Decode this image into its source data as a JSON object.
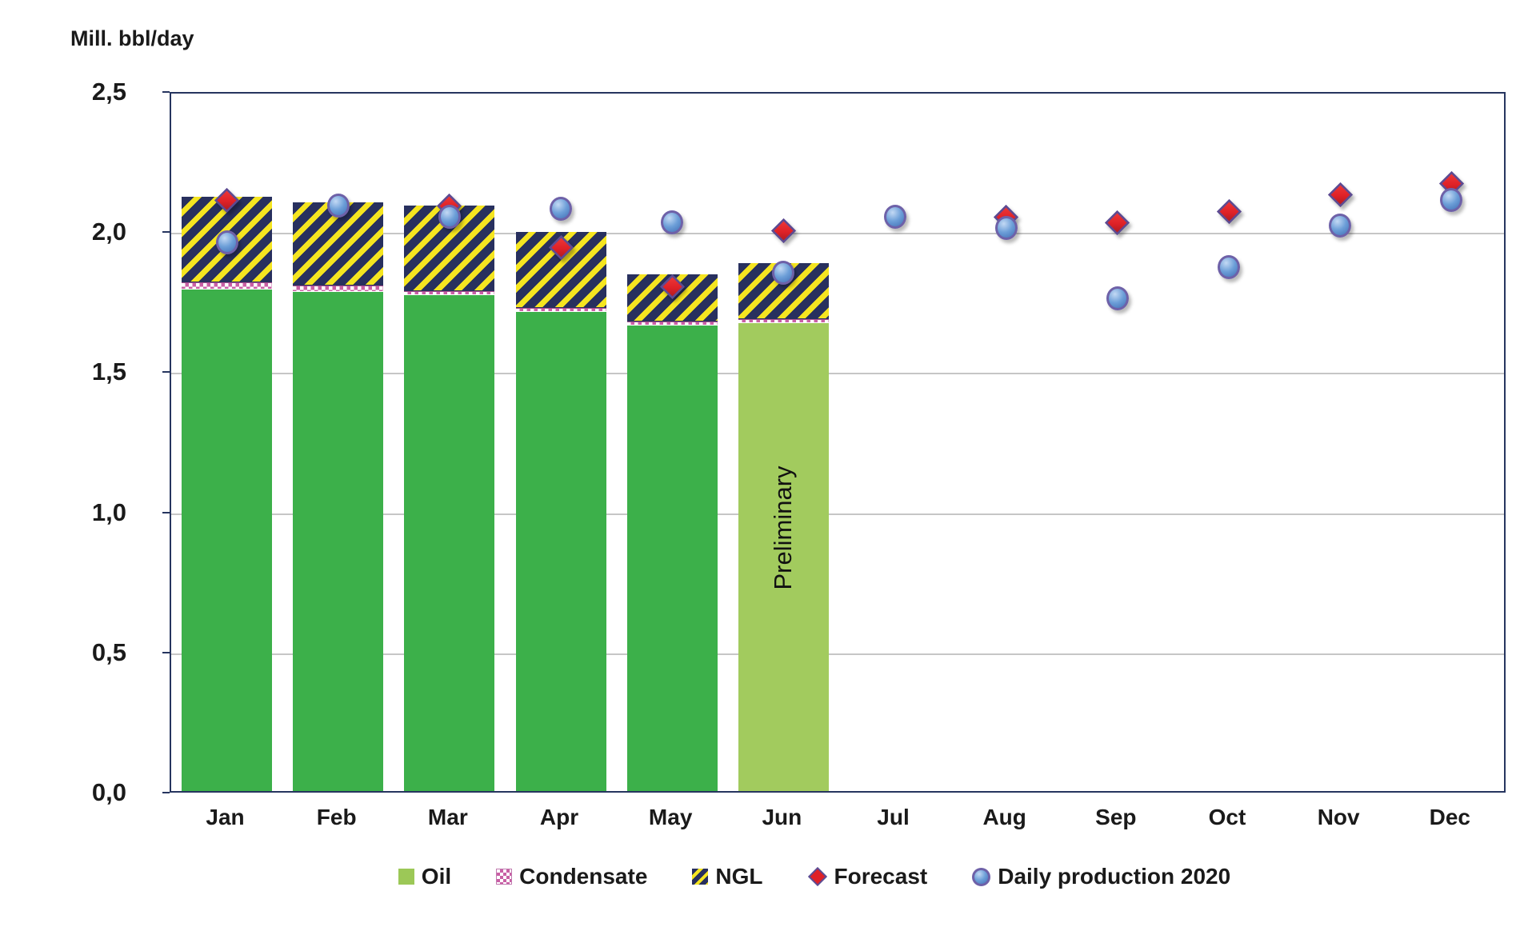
{
  "title": "Mill. bbl/day",
  "chart_data": {
    "type": "bar",
    "subtype": "stacked-bars-with-scatter-overlay",
    "title": "Mill. bbl/day",
    "xlabel": "",
    "ylabel": "Mill. bbl/day",
    "ylim": [
      0,
      2.5
    ],
    "grid": true,
    "legend_position": "bottom",
    "categories": [
      "Jan",
      "Feb",
      "Mar",
      "Apr",
      "May",
      "Jun",
      "Jul",
      "Aug",
      "Sep",
      "Oct",
      "Nov",
      "Dec"
    ],
    "y_ticks": [
      {
        "label": "2,5",
        "value": 2.5
      },
      {
        "label": "2,0",
        "value": 2.0
      },
      {
        "label": "1,5",
        "value": 1.5
      },
      {
        "label": "1,0",
        "value": 1.0
      },
      {
        "label": "0,5",
        "value": 0.5
      },
      {
        "label": "0,0",
        "value": 0.0
      }
    ],
    "series": [
      {
        "name": "Oil",
        "type": "stacked-bar",
        "values": [
          1.79,
          1.78,
          1.77,
          1.71,
          1.66,
          1.67,
          null,
          null,
          null,
          null,
          null,
          null
        ]
      },
      {
        "name": "Condensate",
        "type": "stacked-bar",
        "values": [
          0.025,
          0.025,
          0.015,
          0.015,
          0.015,
          0.015,
          null,
          null,
          null,
          null,
          null,
          null
        ]
      },
      {
        "name": "NGL",
        "type": "stacked-bar",
        "values": [
          0.305,
          0.295,
          0.305,
          0.27,
          0.17,
          0.2,
          null,
          null,
          null,
          null,
          null,
          null
        ]
      },
      {
        "name": "Forecast",
        "type": "scatter-diamond",
        "values": [
          2.12,
          null,
          2.1,
          1.95,
          1.81,
          2.01,
          null,
          2.06,
          2.04,
          2.08,
          2.14,
          2.18
        ]
      },
      {
        "name": "Daily production 2020",
        "type": "scatter-circle",
        "values": [
          1.97,
          2.1,
          2.06,
          2.09,
          2.04,
          1.86,
          2.06,
          2.02,
          1.77,
          1.88,
          2.03,
          2.12
        ]
      }
    ],
    "annotations": [
      {
        "text": "Preliminary",
        "month": "Jun",
        "note": "June bar drawn in light green (preliminary figures)"
      }
    ],
    "preliminary_month_index": 5
  },
  "legend": {
    "items": [
      {
        "label": "Oil",
        "swatch": "oil-square"
      },
      {
        "label": "Condensate",
        "swatch": "checker-square"
      },
      {
        "label": "NGL",
        "swatch": "hatch-square"
      },
      {
        "label": "Forecast",
        "swatch": "red-diamond"
      },
      {
        "label": "Daily production 2020",
        "swatch": "blue-circle"
      }
    ]
  },
  "colors": {
    "oil_green": "#3cb04a",
    "oil_preliminary_green": "#a2cb5e",
    "legend_oil_swatch": "#9cc857",
    "condensate_pink": "#c95fa5",
    "ngl_navy": "#28305e",
    "ngl_yellow": "#f5e520",
    "forecast_red": "#df2127",
    "marker_outline_purple": "#6e61a8",
    "daily_production_blue": "#6d9fd8",
    "gridline_gray": "#c6c6c6",
    "axis_border_navy": "#26355f",
    "text": "#1a1a1a"
  }
}
